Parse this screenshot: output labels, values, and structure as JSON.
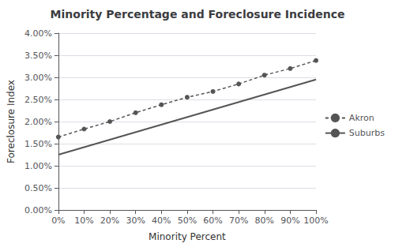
{
  "chart_data": {
    "type": "line",
    "title": "Minority Percentage and Foreclosure Incidence",
    "xlabel": "Minority Percent",
    "ylabel": "Foreclosure Index",
    "series": [
      {
        "name": "Suburbs",
        "color": "#555555",
        "line_style": "solid",
        "x": [
          0,
          100
        ],
        "values": [
          0.0125,
          0.0295
        ]
      },
      {
        "name": "Akron",
        "color": "#555555",
        "line_style": "dashed",
        "marker": "dot",
        "x": [
          0,
          10,
          20,
          30,
          40,
          50,
          60,
          70,
          80,
          90,
          100
        ],
        "values": [
          0.0165,
          0.0183,
          0.02,
          0.022,
          0.0238,
          0.0255,
          0.0268,
          0.0285,
          0.0305,
          0.032,
          0.0338
        ]
      }
    ],
    "xlim": [
      0,
      100
    ],
    "xticks": [
      {
        "value": 0,
        "label": "0%"
      },
      {
        "value": 10,
        "label": "10%"
      },
      {
        "value": 20,
        "label": "20%"
      },
      {
        "value": 30,
        "label": "30%"
      },
      {
        "value": 40,
        "label": "40%"
      },
      {
        "value": 50,
        "label": "50%"
      },
      {
        "value": 60,
        "label": "60%"
      },
      {
        "value": 70,
        "label": "70%"
      },
      {
        "value": 80,
        "label": "80%"
      },
      {
        "value": 90,
        "label": "90%"
      },
      {
        "value": 100,
        "label": "100%"
      }
    ],
    "ylim": [
      0.0,
      0.04
    ],
    "yticks": [
      {
        "value": 0.0,
        "label": "0.00%"
      },
      {
        "value": 0.005,
        "label": "0.50%"
      },
      {
        "value": 0.01,
        "label": "1.00%"
      },
      {
        "value": 0.015,
        "label": "1.50%"
      },
      {
        "value": 0.02,
        "label": "2.00%"
      },
      {
        "value": 0.025,
        "label": "2.50%"
      },
      {
        "value": 0.03,
        "label": "3.00%"
      },
      {
        "value": 0.035,
        "label": "3.50%"
      },
      {
        "value": 0.04,
        "label": "4.00%"
      }
    ],
    "grid": true,
    "legend": "right"
  }
}
